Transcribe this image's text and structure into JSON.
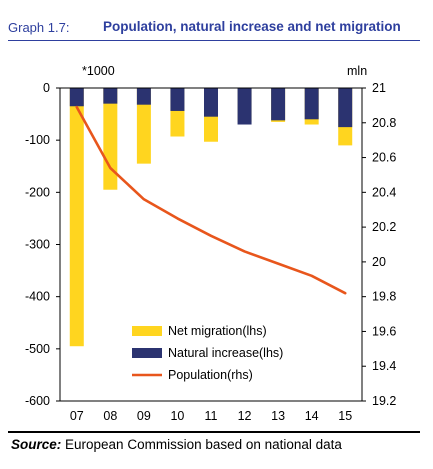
{
  "header": {
    "graph_label": "Graph 1.7:",
    "title": "Population, natural increase and net migration"
  },
  "footer": {
    "source_label": "Source:",
    "source_text": " European Commission based on national data"
  },
  "colors": {
    "net_migration": "#ffd51f",
    "natural_increase": "#2b3370",
    "population": "#e8561c",
    "title": "#2e3f9e"
  },
  "chart_data": {
    "type": "bar",
    "categories": [
      "07",
      "08",
      "09",
      "10",
      "11",
      "12",
      "13",
      "14",
      "15"
    ],
    "left_unit": "*1000",
    "right_unit": "mln",
    "ylim_left": [
      -600,
      0
    ],
    "ylim_right": [
      19.2,
      21
    ],
    "yticks_left": [
      "0",
      "-100",
      "-200",
      "-300",
      "-400",
      "-500",
      "-600"
    ],
    "yticks_right": [
      "21",
      "20.8",
      "20.6",
      "20.4",
      "20.2",
      "20",
      "19.8",
      "19.6",
      "19.4",
      "19.2"
    ],
    "grid": false,
    "legend_position": "bottom-center",
    "series": [
      {
        "name": "Net migration(lhs)",
        "axis": "left",
        "kind": "bar",
        "values": [
          -495,
          -195,
          -145,
          -93,
          -103,
          -65,
          -65,
          -70,
          -110
        ]
      },
      {
        "name": "Natural increase(lhs)",
        "axis": "left",
        "kind": "bar",
        "values": [
          -35,
          -30,
          -32,
          -44,
          -55,
          -70,
          -62,
          -60,
          -75
        ]
      },
      {
        "name": "Population(rhs)",
        "axis": "right",
        "kind": "line",
        "values": [
          20.89,
          20.54,
          20.36,
          20.25,
          20.15,
          20.06,
          19.99,
          19.92,
          19.82
        ]
      }
    ]
  }
}
